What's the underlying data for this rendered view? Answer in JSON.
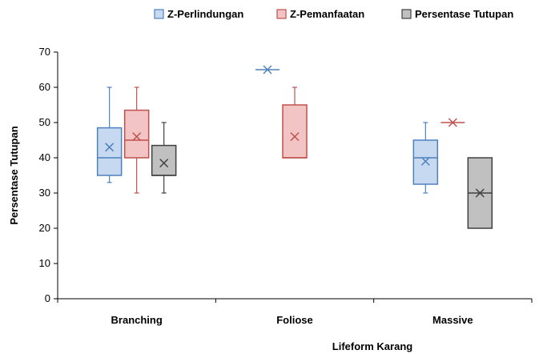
{
  "chart_data": {
    "type": "box",
    "title": "",
    "xlabel": "Lifeform Karang",
    "ylabel": "Persentase Tutupan",
    "ylim": [
      0,
      70
    ],
    "yticks": [
      0,
      10,
      20,
      30,
      40,
      50,
      60,
      70
    ],
    "grid": false,
    "legend_position": "top",
    "categories": [
      "Branching",
      "Foliose",
      "Massive"
    ],
    "series": [
      {
        "name": "Z-Perlindungan",
        "fill": "#c6d9f0",
        "stroke": "#4f81bd",
        "boxes": [
          {
            "min": 33,
            "q1": 35,
            "median": 40,
            "q3": 48.5,
            "max": 60,
            "mean": 43
          },
          {
            "min": 65,
            "q1": 65,
            "median": 65,
            "q3": 65,
            "max": 65,
            "mean": 65
          },
          {
            "min": 30,
            "q1": 32.5,
            "median": 40,
            "q3": 45,
            "max": 50,
            "mean": 39
          }
        ]
      },
      {
        "name": "Z-Pemanfaatan",
        "fill": "#f2c4c4",
        "stroke": "#c0504d",
        "boxes": [
          {
            "min": 30,
            "q1": 40,
            "median": 45,
            "q3": 53.5,
            "max": 60,
            "mean": 46
          },
          {
            "min": 40,
            "q1": 40,
            "median": 40,
            "q3": 55,
            "max": 60,
            "mean": 46
          },
          {
            "min": 50,
            "q1": 50,
            "median": 50,
            "q3": 50,
            "max": 50,
            "mean": 50
          }
        ]
      },
      {
        "name": "Persentase Tutupan",
        "fill": "#c0c0c0",
        "stroke": "#404040",
        "boxes": [
          {
            "min": 30,
            "q1": 35,
            "median": 35,
            "q3": 43.5,
            "max": 50,
            "mean": 38.5
          },
          null,
          {
            "min": 20,
            "q1": 20,
            "median": 30,
            "q3": 40,
            "max": 40,
            "mean": 30
          }
        ]
      }
    ]
  }
}
